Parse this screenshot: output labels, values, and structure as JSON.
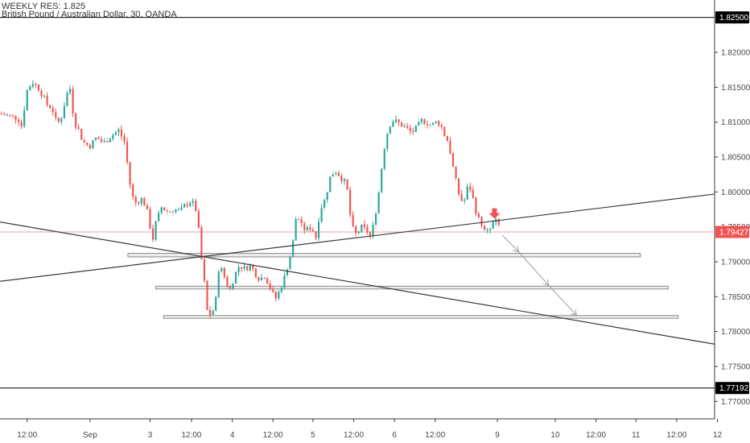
{
  "header": {
    "title": "WEEKLY RES: 1.825",
    "subtitle": "British Pound / Australian Dollar, 30, OANDA"
  },
  "chart_data": {
    "type": "candlestick",
    "ylim": [
      1.7675,
      1.8275
    ],
    "xlim": [
      0,
      100
    ],
    "y_ticks": [
      "1.82000",
      "1.81500",
      "1.81000",
      "1.80500",
      "1.80000",
      "1.79500",
      "1.79000",
      "1.78500",
      "1.78000",
      "1.77500",
      "1.77000"
    ],
    "y_tick_values": [
      1.82,
      1.815,
      1.81,
      1.805,
      1.8,
      1.795,
      1.79,
      1.785,
      1.78,
      1.775,
      1.77
    ],
    "x_ticks": [
      {
        "label": "12:00",
        "x": 3.8
      },
      {
        "label": "Sep",
        "x": 12.6
      },
      {
        "label": "3",
        "x": 21.0
      },
      {
        "label": "12:00",
        "x": 26.8
      },
      {
        "label": "4",
        "x": 32.5
      },
      {
        "label": "12:00",
        "x": 38.2
      },
      {
        "label": "5",
        "x": 43.8
      },
      {
        "label": "12:00",
        "x": 49.5
      },
      {
        "label": "6",
        "x": 55.2
      },
      {
        "label": "12:00",
        "x": 60.9
      },
      {
        "label": "9",
        "x": 69.6
      },
      {
        "label": "10",
        "x": 77.7
      },
      {
        "label": "12:00",
        "x": 83.4
      },
      {
        "label": "11",
        "x": 89.0
      },
      {
        "label": "12:00",
        "x": 94.7
      },
      {
        "label": "12",
        "x": 100.4
      }
    ],
    "price_tags": [
      {
        "label": "1.82500",
        "value": 1.825,
        "color": "#000000"
      },
      {
        "label": "1.79427",
        "value": 1.79427,
        "color": "#ef5350"
      },
      {
        "label": "1.77192",
        "value": 1.77192,
        "color": "#000000"
      }
    ],
    "horizontal_lines": [
      {
        "value": 1.825,
        "color": "#000000"
      },
      {
        "value": 1.77192,
        "color": "#000000"
      },
      {
        "value": 1.79427,
        "color": "#f4a09c"
      }
    ],
    "trendlines": [
      {
        "x1": 0,
        "y1": 1.7957,
        "x2": 100,
        "y2": 1.7782
      },
      {
        "x1": 0,
        "y1": 1.7872,
        "x2": 100,
        "y2": 1.7997
      }
    ],
    "zones": [
      {
        "x1": 17.9,
        "x2": 89.6,
        "y1": 1.7912,
        "y2": 1.7907
      },
      {
        "x1": 21.8,
        "x2": 93.5,
        "y1": 1.7865,
        "y2": 1.7861
      },
      {
        "x1": 22.9,
        "x2": 94.9,
        "y1": 1.7823,
        "y2": 1.7819
      }
    ],
    "projection": [
      {
        "x": 70.3,
        "y": 1.7938
      },
      {
        "x": 72.6,
        "y": 1.7914
      },
      {
        "x": 76.8,
        "y": 1.7866
      },
      {
        "x": 80.7,
        "y": 1.7823
      }
    ],
    "marker": {
      "x": 69.2,
      "y": 1.7965,
      "color": "#ef5350"
    },
    "up_color": "#26a69a",
    "down_color": "#ef5350",
    "path": [
      [
        0,
        1.8112
      ],
      [
        2.5,
        1.8106
      ],
      [
        3.0,
        1.8095
      ],
      [
        3.8,
        1.8145
      ],
      [
        4.5,
        1.8158
      ],
      [
        5.3,
        1.815
      ],
      [
        6.0,
        1.8138
      ],
      [
        6.6,
        1.8125
      ],
      [
        7.3,
        1.812
      ],
      [
        8.0,
        1.8096
      ],
      [
        8.7,
        1.811
      ],
      [
        9.3,
        1.814
      ],
      [
        9.8,
        1.8148
      ],
      [
        10.4,
        1.81
      ],
      [
        10.9,
        1.8092
      ],
      [
        11.6,
        1.8072
      ],
      [
        12.5,
        1.8065
      ],
      [
        13.5,
        1.8078
      ],
      [
        14.5,
        1.807
      ],
      [
        15.5,
        1.808
      ],
      [
        16.6,
        1.8088
      ],
      [
        17.4,
        1.8072
      ],
      [
        17.9,
        1.8035
      ],
      [
        18.4,
        1.7995
      ],
      [
        19.0,
        1.7985
      ],
      [
        19.8,
        1.799
      ],
      [
        20.4,
        1.798
      ],
      [
        20.9,
        1.7958
      ],
      [
        21.3,
        1.7928
      ],
      [
        21.8,
        1.7955
      ],
      [
        22.6,
        1.7978
      ],
      [
        23.5,
        1.7972
      ],
      [
        24.4,
        1.7975
      ],
      [
        25.2,
        1.7972
      ],
      [
        26.0,
        1.7982
      ],
      [
        26.8,
        1.7988
      ],
      [
        27.6,
        1.797
      ],
      [
        28.0,
        1.792
      ],
      [
        28.6,
        1.787
      ],
      [
        29.1,
        1.782
      ],
      [
        29.6,
        1.7828
      ],
      [
        30.1,
        1.7835
      ],
      [
        30.6,
        1.789
      ],
      [
        31.1,
        1.7888
      ],
      [
        31.6,
        1.7872
      ],
      [
        32.2,
        1.786
      ],
      [
        32.8,
        1.788
      ],
      [
        33.5,
        1.7895
      ],
      [
        34.3,
        1.789
      ],
      [
        35.1,
        1.7895
      ],
      [
        35.8,
        1.7882
      ],
      [
        36.4,
        1.7875
      ],
      [
        37.0,
        1.788
      ],
      [
        37.6,
        1.7868
      ],
      [
        38.1,
        1.7855
      ],
      [
        38.6,
        1.7848
      ],
      [
        39.2,
        1.786
      ],
      [
        39.8,
        1.7878
      ],
      [
        40.4,
        1.79
      ],
      [
        40.9,
        1.792
      ],
      [
        41.5,
        1.797
      ],
      [
        42.1,
        1.7952
      ],
      [
        42.8,
        1.7945
      ],
      [
        43.6,
        1.795
      ],
      [
        44.2,
        1.7935
      ],
      [
        44.8,
        1.7975
      ],
      [
        45.5,
        1.799
      ],
      [
        46.3,
        1.8025
      ],
      [
        47.0,
        1.803
      ],
      [
        47.8,
        1.802
      ],
      [
        48.5,
        1.801
      ],
      [
        49.2,
        1.795
      ],
      [
        49.9,
        1.7938
      ],
      [
        50.5,
        1.795
      ],
      [
        51.3,
        1.7945
      ],
      [
        51.9,
        1.7935
      ],
      [
        52.4,
        1.796
      ],
      [
        53.0,
        1.8
      ],
      [
        53.7,
        1.806
      ],
      [
        54.4,
        1.8095
      ],
      [
        55.0,
        1.8102
      ],
      [
        55.6,
        1.81
      ],
      [
        56.3,
        1.8095
      ],
      [
        57.0,
        1.809
      ],
      [
        57.6,
        1.8085
      ],
      [
        58.3,
        1.8092
      ],
      [
        59.0,
        1.8102
      ],
      [
        59.7,
        1.81
      ],
      [
        60.4,
        1.8095
      ],
      [
        61.0,
        1.81
      ],
      [
        61.6,
        1.8098
      ],
      [
        62.2,
        1.8082
      ],
      [
        62.8,
        1.807
      ],
      [
        63.3,
        1.804
      ],
      [
        63.9,
        1.801
      ],
      [
        64.4,
        1.799
      ],
      [
        64.9,
        1.7985
      ],
      [
        65.4,
        1.8005
      ],
      [
        65.9,
        1.8005
      ],
      [
        66.4,
        1.798
      ],
      [
        66.9,
        1.7962
      ],
      [
        67.4,
        1.7955
      ],
      [
        67.9,
        1.794
      ],
      [
        68.5,
        1.7945
      ],
      [
        69.0,
        1.7955
      ],
      [
        69.5,
        1.7958
      ],
      [
        70.0,
        1.7948
      ]
    ]
  }
}
